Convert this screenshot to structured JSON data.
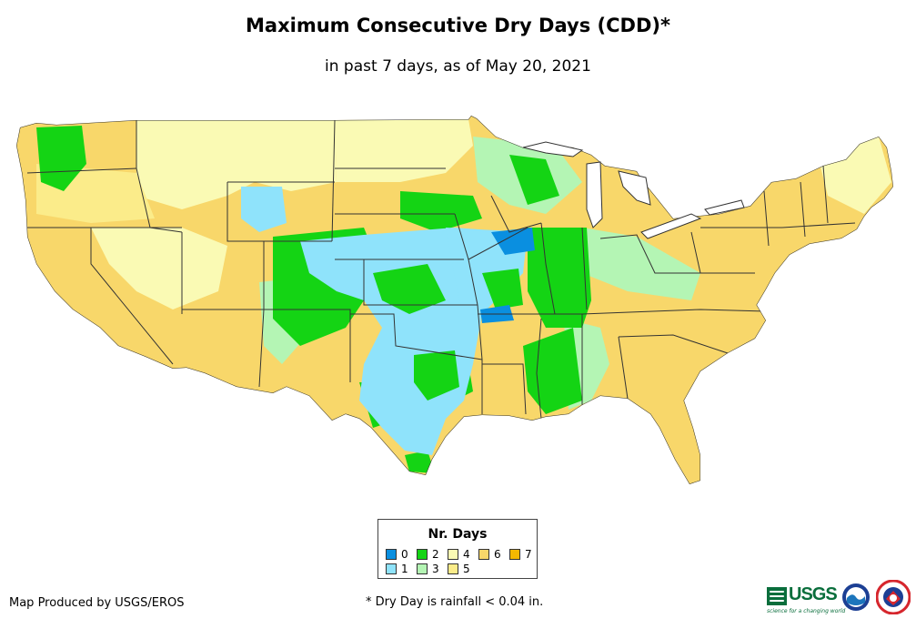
{
  "title": "Maximum Consecutive Dry Days (CDD)*",
  "subtitle": "in past 7 days, as of May 20, 2021",
  "legend": {
    "title": "Nr. Days",
    "items": [
      {
        "label": "0",
        "color": "#0a8fe0"
      },
      {
        "label": "1",
        "color": "#8fe3fb"
      },
      {
        "label": "2",
        "color": "#14d414"
      },
      {
        "label": "3",
        "color": "#b4f5b4"
      },
      {
        "label": "4",
        "color": "#fafab4"
      },
      {
        "label": "5",
        "color": "#fbec8a"
      },
      {
        "label": "6",
        "color": "#f8d76a"
      },
      {
        "label": "7",
        "color": "#f5b800"
      }
    ]
  },
  "producer": "Map Produced by USGS/EROS",
  "footnote": "* Dry Day is rainfall < 0.04 in.",
  "logos": {
    "usgs": "USGS",
    "usgs_tagline": "science for a changing world"
  },
  "colors": {
    "zero": "#0a8fe0",
    "one": "#8fe3fb",
    "two": "#14d414",
    "three": "#b4f5b4",
    "four": "#fafab4",
    "five": "#fbec8a",
    "six": "#f8d76a",
    "seven": "#f5b800",
    "border": "#333333"
  }
}
